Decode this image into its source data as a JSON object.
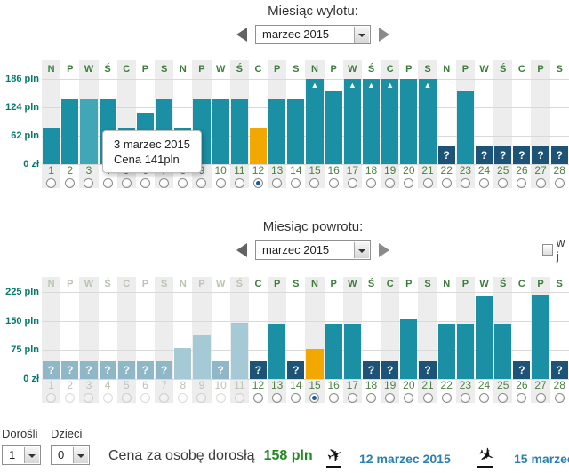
{
  "outbound": {
    "title": "Miesiąc wylotu:",
    "month_value": "marzec 2015",
    "selected_day": 12
  },
  "return": {
    "title": "Miesiąc powrotu:",
    "month_value": "marzec 2015",
    "selected_day": 15,
    "one_way_label": "w j"
  },
  "tooltip": {
    "line1": "3 marzec 2015",
    "line2": "Cena 141pln"
  },
  "footer": {
    "adults_label": "Dorośli",
    "adults_value": "1",
    "children_label": "Dzieci",
    "children_value": "0",
    "price_label": "Cena za osobę dorosłą",
    "price_value": "158 pln",
    "depart_date": "12 marzec 2015",
    "return_date": "15 marzec"
  },
  "colors": {
    "bar_teal": "#1b8fa3",
    "bar_hover": "#41a6b6",
    "bar_selected_orange": "#f2a800",
    "bar_unknown_navy": "#1d5377",
    "bar_disabled_blue": "#a6c9d6",
    "axis_label": "#06796a",
    "day_text_green": "#4c8040",
    "price_green": "#208a20",
    "date_blue": "#2c7fb2"
  },
  "chart_data": [
    {
      "id": "outbound",
      "type": "bar",
      "title": "Miesiąc wylotu: marzec 2015",
      "ylabel": "pln",
      "ylim": [
        0,
        186
      ],
      "y_ticks": [
        "186 pln",
        "124 pln",
        "62 pln",
        "0 zł"
      ],
      "selected_day": 12,
      "hovered_day": 3,
      "days": [
        {
          "day": 1,
          "dow": "N",
          "price": 79,
          "state": "normal"
        },
        {
          "day": 2,
          "dow": "P",
          "price": 141,
          "state": "normal"
        },
        {
          "day": 3,
          "dow": "W",
          "price": 141,
          "state": "hover"
        },
        {
          "day": 4,
          "dow": "Ś",
          "price": 141,
          "state": "normal"
        },
        {
          "day": 5,
          "dow": "C",
          "price": 79,
          "state": "normal"
        },
        {
          "day": 6,
          "dow": "P",
          "price": 113,
          "state": "normal"
        },
        {
          "day": 7,
          "dow": "S",
          "price": 141,
          "state": "normal"
        },
        {
          "day": 8,
          "dow": "N",
          "price": 79,
          "state": "normal"
        },
        {
          "day": 9,
          "dow": "P",
          "price": 141,
          "state": "normal"
        },
        {
          "day": 10,
          "dow": "W",
          "price": 141,
          "state": "normal"
        },
        {
          "day": 11,
          "dow": "Ś",
          "price": 141,
          "state": "normal"
        },
        {
          "day": 12,
          "dow": "C",
          "price": 79,
          "state": "selected"
        },
        {
          "day": 13,
          "dow": "P",
          "price": 141,
          "state": "normal"
        },
        {
          "day": 14,
          "dow": "S",
          "price": 141,
          "state": "normal"
        },
        {
          "day": 15,
          "dow": "N",
          "price": null,
          "state": "overmax"
        },
        {
          "day": 16,
          "dow": "P",
          "price": 158,
          "state": "normal"
        },
        {
          "day": 17,
          "dow": "W",
          "price": null,
          "state": "overmax"
        },
        {
          "day": 18,
          "dow": "Ś",
          "price": null,
          "state": "overmax"
        },
        {
          "day": 19,
          "dow": "C",
          "price": null,
          "state": "overmax"
        },
        {
          "day": 20,
          "dow": "P",
          "price": 186,
          "state": "normal"
        },
        {
          "day": 21,
          "dow": "S",
          "price": null,
          "state": "overmax"
        },
        {
          "day": 22,
          "dow": "N",
          "price": null,
          "state": "unknown"
        },
        {
          "day": 23,
          "dow": "P",
          "price": 160,
          "state": "normal"
        },
        {
          "day": 24,
          "dow": "W",
          "price": null,
          "state": "unknown"
        },
        {
          "day": 25,
          "dow": "Ś",
          "price": null,
          "state": "unknown"
        },
        {
          "day": 26,
          "dow": "C",
          "price": null,
          "state": "unknown"
        },
        {
          "day": 27,
          "dow": "P",
          "price": null,
          "state": "unknown"
        },
        {
          "day": 28,
          "dow": "S",
          "price": null,
          "state": "unknown"
        }
      ]
    },
    {
      "id": "return",
      "type": "bar",
      "title": "Miesiąc powrotu: marzec 2015",
      "ylabel": "pln",
      "ylim": [
        0,
        225
      ],
      "y_ticks": [
        "225 pln",
        "150 pln",
        "75 pln",
        "0 zł"
      ],
      "selected_day": 15,
      "days": [
        {
          "day": 1,
          "dow": "N",
          "price": null,
          "state": "disabled-unknown"
        },
        {
          "day": 2,
          "dow": "P",
          "price": null,
          "state": "disabled-unknown"
        },
        {
          "day": 3,
          "dow": "W",
          "price": null,
          "state": "disabled-unknown"
        },
        {
          "day": 4,
          "dow": "Ś",
          "price": null,
          "state": "disabled-unknown"
        },
        {
          "day": 5,
          "dow": "C",
          "price": null,
          "state": "disabled-unknown"
        },
        {
          "day": 6,
          "dow": "P",
          "price": null,
          "state": "disabled-unknown"
        },
        {
          "day": 7,
          "dow": "S",
          "price": null,
          "state": "disabled-unknown"
        },
        {
          "day": 8,
          "dow": "N",
          "price": 81,
          "state": "disabled"
        },
        {
          "day": 9,
          "dow": "P",
          "price": 114,
          "state": "disabled"
        },
        {
          "day": 10,
          "dow": "W",
          "price": null,
          "state": "disabled-unknown"
        },
        {
          "day": 11,
          "dow": "Ś",
          "price": 144,
          "state": "disabled"
        },
        {
          "day": 12,
          "dow": "C",
          "price": null,
          "state": "unknown"
        },
        {
          "day": 13,
          "dow": "P",
          "price": 143,
          "state": "normal"
        },
        {
          "day": 14,
          "dow": "S",
          "price": null,
          "state": "unknown"
        },
        {
          "day": 15,
          "dow": "N",
          "price": 79,
          "state": "selected"
        },
        {
          "day": 16,
          "dow": "P",
          "price": 143,
          "state": "normal"
        },
        {
          "day": 17,
          "dow": "W",
          "price": 143,
          "state": "normal"
        },
        {
          "day": 18,
          "dow": "Ś",
          "price": null,
          "state": "unknown"
        },
        {
          "day": 19,
          "dow": "C",
          "price": null,
          "state": "unknown"
        },
        {
          "day": 20,
          "dow": "P",
          "price": 156,
          "state": "normal"
        },
        {
          "day": 21,
          "dow": "S",
          "price": null,
          "state": "unknown"
        },
        {
          "day": 22,
          "dow": "N",
          "price": 143,
          "state": "normal"
        },
        {
          "day": 23,
          "dow": "P",
          "price": 143,
          "state": "normal"
        },
        {
          "day": 24,
          "dow": "W",
          "price": 216,
          "state": "normal"
        },
        {
          "day": 25,
          "dow": "Ś",
          "price": 143,
          "state": "normal"
        },
        {
          "day": 26,
          "dow": "C",
          "price": null,
          "state": "unknown"
        },
        {
          "day": 27,
          "dow": "P",
          "price": 218,
          "state": "normal"
        },
        {
          "day": 28,
          "dow": "S",
          "price": null,
          "state": "unknown"
        }
      ]
    }
  ]
}
